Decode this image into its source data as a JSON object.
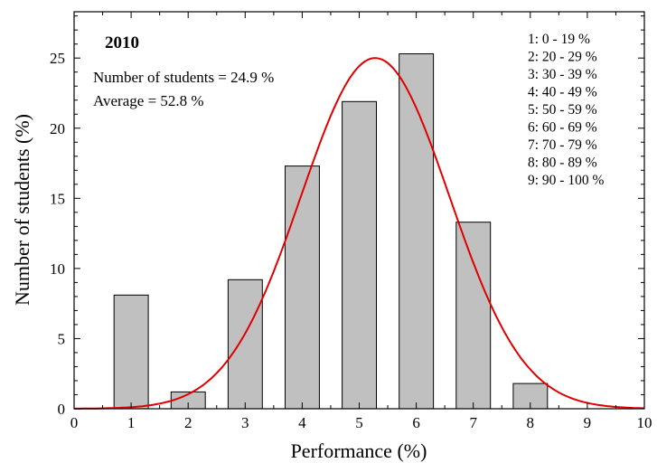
{
  "chart_data": {
    "type": "bar",
    "title": "2010",
    "xlabel": "Performance (%)",
    "ylabel": "Number of students (%)",
    "annotations": [
      "Number of students = 24.9 %",
      "Average = 52.8 %"
    ],
    "legend_position": "top-right",
    "legend_entries": [
      "1: 0 - 19 %",
      "2: 20 - 29 %",
      "3: 30 - 39 %",
      "4: 40 - 49 %",
      "5: 50 - 59 %",
      "6: 60 - 69 %",
      "7: 70 - 79 %",
      "8: 80 - 89 %",
      "9: 90 - 100 %"
    ],
    "xlim": [
      0,
      10
    ],
    "ylim": [
      0,
      28.3
    ],
    "x_ticks": [
      0,
      1,
      2,
      3,
      4,
      5,
      6,
      7,
      8,
      9,
      10
    ],
    "y_ticks": [
      0,
      5,
      10,
      15,
      20,
      25
    ],
    "grid": false,
    "categories": [
      1,
      2,
      3,
      4,
      5,
      6,
      7,
      8,
      9
    ],
    "values": [
      8.1,
      1.2,
      9.2,
      17.3,
      21.9,
      25.3,
      13.3,
      1.8,
      0
    ],
    "bar_width": 0.6,
    "fit_curve": {
      "type": "gaussian",
      "peak": 25.0,
      "center": 5.28,
      "sigma": 1.3,
      "x_range": [
        0,
        10
      ]
    },
    "colors": {
      "bar_fill": "#c0c0c0",
      "bar_stroke": "#000000",
      "curve": "#e00000",
      "axis": "#000000"
    }
  }
}
